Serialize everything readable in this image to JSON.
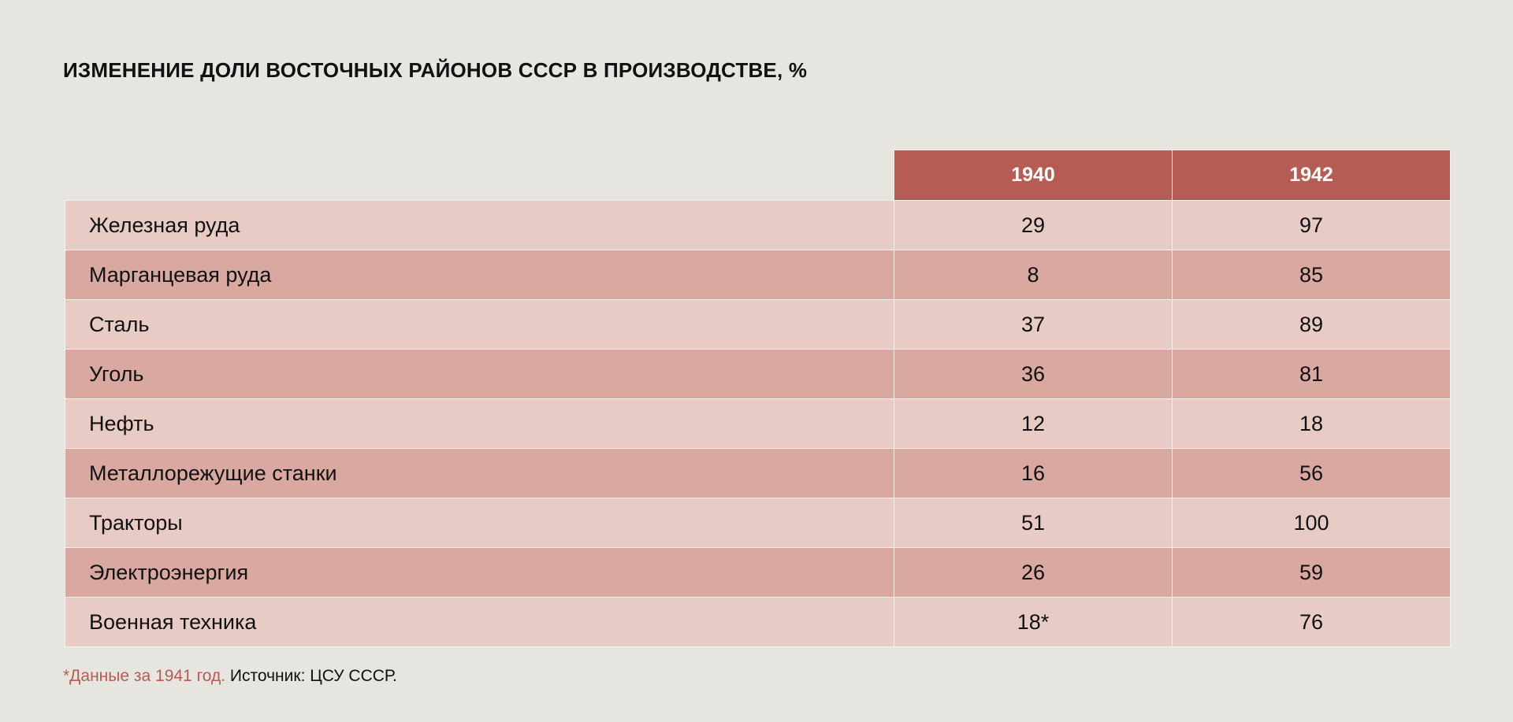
{
  "title": "ИЗМЕНЕНИЕ ДОЛИ ВОСТОЧНЫХ РАЙОНОВ СССР В ПРОИЗВОДСТВЕ, %",
  "colors": {
    "background": "#e6e5df",
    "header": "#b55c55",
    "row_light": "#e9cbc6",
    "row_dark": "#d9a8a0",
    "note": "#b55c55"
  },
  "chart_data": {
    "type": "table",
    "title": "ИЗМЕНЕНИЕ ДОЛИ ВОСТОЧНЫХ РАЙОНОВ СССР В ПРОИЗВОДСТВЕ, %",
    "columns": [
      "",
      "1940",
      "1942"
    ],
    "rows": [
      {
        "label": "Железная руда",
        "v1940": "29",
        "v1942": "97"
      },
      {
        "label": "Марганцевая руда",
        "v1940": "8",
        "v1942": "85"
      },
      {
        "label": "Сталь",
        "v1940": "37",
        "v1942": "89"
      },
      {
        "label": "Уголь",
        "v1940": "36",
        "v1942": "81"
      },
      {
        "label": "Нефть",
        "v1940": "12",
        "v1942": "18"
      },
      {
        "label": "Металлорежущие станки",
        "v1940": "16",
        "v1942": "56"
      },
      {
        "label": "Тракторы",
        "v1940": "51",
        "v1942": "100"
      },
      {
        "label": "Электроэнергия",
        "v1940": "26",
        "v1942": "59"
      },
      {
        "label": "Военная техника",
        "v1940": "18*",
        "v1942": "76"
      }
    ]
  },
  "footnote": {
    "note": "*Данные за 1941 год.",
    "source": "Источник: ЦСУ СССР."
  }
}
